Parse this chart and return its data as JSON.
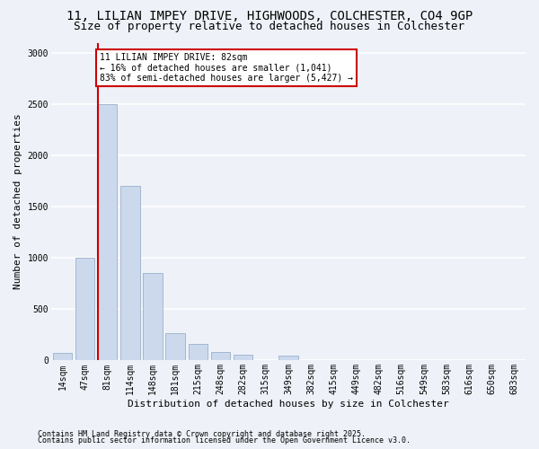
{
  "title1": "11, LILIAN IMPEY DRIVE, HIGHWOODS, COLCHESTER, CO4 9GP",
  "title2": "Size of property relative to detached houses in Colchester",
  "xlabel": "Distribution of detached houses by size in Colchester",
  "ylabel": "Number of detached properties",
  "categories": [
    "14sqm",
    "47sqm",
    "81sqm",
    "114sqm",
    "148sqm",
    "181sqm",
    "215sqm",
    "248sqm",
    "282sqm",
    "315sqm",
    "349sqm",
    "382sqm",
    "415sqm",
    "449sqm",
    "482sqm",
    "516sqm",
    "549sqm",
    "583sqm",
    "616sqm",
    "650sqm",
    "683sqm"
  ],
  "values": [
    70,
    1000,
    2500,
    1700,
    850,
    270,
    160,
    80,
    60,
    0,
    50,
    0,
    0,
    0,
    0,
    0,
    0,
    0,
    0,
    0,
    0
  ],
  "bar_color": "#ccd9ed",
  "bar_edge_color": "#9ab0cc",
  "vline_color": "#cc0000",
  "annotation_text": "11 LILIAN IMPEY DRIVE: 82sqm\n← 16% of detached houses are smaller (1,041)\n83% of semi-detached houses are larger (5,427) →",
  "annotation_box_color": "#ffffff",
  "annotation_box_edge_color": "#cc0000",
  "ylim": [
    0,
    3100
  ],
  "yticks": [
    0,
    500,
    1000,
    1500,
    2000,
    2500,
    3000
  ],
  "background_color": "#eef2f8",
  "grid_color": "#ffffff",
  "footer1": "Contains HM Land Registry data © Crown copyright and database right 2025.",
  "footer2": "Contains public sector information licensed under the Open Government Licence v3.0.",
  "title_fontsize": 10,
  "subtitle_fontsize": 9,
  "ylabel_fontsize": 8,
  "xlabel_fontsize": 8,
  "tick_fontsize": 7,
  "annotation_fontsize": 7,
  "footer_fontsize": 6
}
